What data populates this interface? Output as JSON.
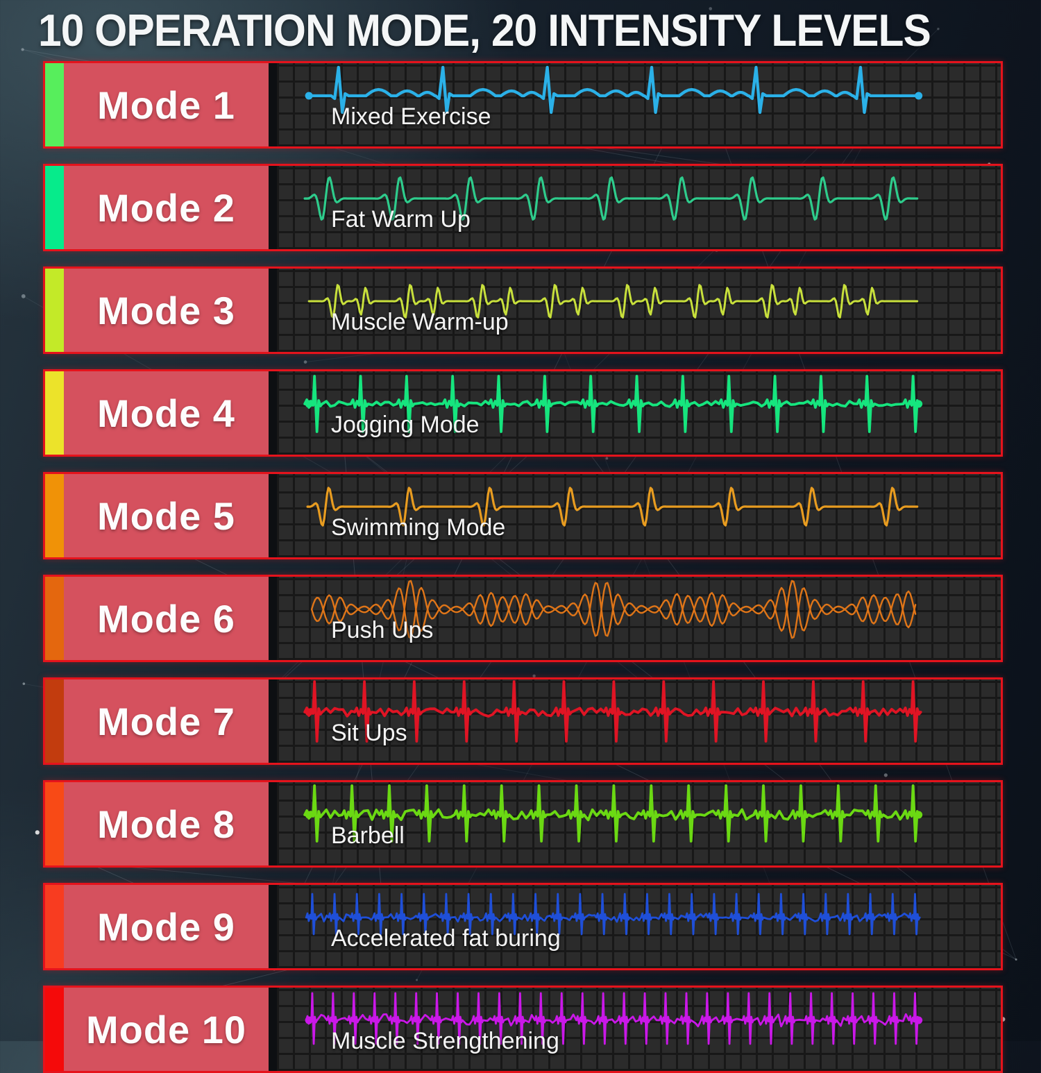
{
  "title": "10 OPERATION MODE, 20 INTENSITY LEVELS",
  "accent_colors": {
    "row_border": "#e5131c",
    "label_background": "#d5515e",
    "panel_background": "#2b2b2b",
    "grid_line": "#181818",
    "background_top": "#2e4350",
    "background_bottom": "#0b111a"
  },
  "modes": [
    {
      "label": "Mode 1",
      "exercise": "Mixed Exercise",
      "strip_color": "#57ee5c",
      "wave_color": "#2bb1e8",
      "wave": {
        "type": "ecg-sparse",
        "beats": 6,
        "dots": "both"
      }
    },
    {
      "label": "Mode 2",
      "exercise": "Fat Warm Up",
      "strip_color": "#06eb8b",
      "wave_color": "#2ecc8c",
      "wave": {
        "type": "wavelet",
        "beats": 9,
        "dots": "none"
      }
    },
    {
      "label": "Mode 3",
      "exercise": "Muscle Warm-up",
      "strip_color": "#c3ea28",
      "wave_color": "#c8e03c",
      "wave": {
        "type": "wavelet-pair",
        "beats": 8,
        "dots": "none"
      }
    },
    {
      "label": "Mode 4",
      "exercise": "Jogging Mode",
      "strip_color": "#ece32a",
      "wave_color": "#16e57e",
      "wave": {
        "type": "ecg",
        "beats": 14,
        "dots": "both"
      }
    },
    {
      "label": "Mode 5",
      "exercise": "Swimming Mode",
      "strip_color": "#f09207",
      "wave_color": "#e89c20",
      "wave": {
        "type": "wavelet",
        "beats": 8,
        "dots": "none"
      }
    },
    {
      "label": "Mode 6",
      "exercise": "Push Ups",
      "strip_color": "#e4670e",
      "wave_color": "#df7518",
      "wave": {
        "type": "oscillation",
        "beats": 10,
        "dots": "none"
      }
    },
    {
      "label": "Mode 7",
      "exercise": "Sit Ups",
      "strip_color": "#c23c0e",
      "wave_color": "#e01424",
      "wave": {
        "type": "ecg",
        "beats": 13,
        "dots": "start"
      }
    },
    {
      "label": "Mode 8",
      "exercise": "Barbell",
      "strip_color": "#f84a16",
      "wave_color": "#6bd913",
      "wave": {
        "type": "ecg",
        "beats": 17,
        "dots": "both"
      }
    },
    {
      "label": "Mode 9",
      "exercise": "Accelerated fat buring",
      "strip_color": "#f83c20",
      "wave_color": "#1f4fd8",
      "wave": {
        "type": "ecg-dense",
        "beats": 28,
        "dots": "none"
      }
    },
    {
      "label": "Mode 10",
      "exercise": "Muscle Strengthening",
      "strip_color": "#f50a0a",
      "wave_color": "#ca18e8",
      "wave": {
        "type": "ecg-dense",
        "beats": 30,
        "dots": "both"
      }
    }
  ]
}
